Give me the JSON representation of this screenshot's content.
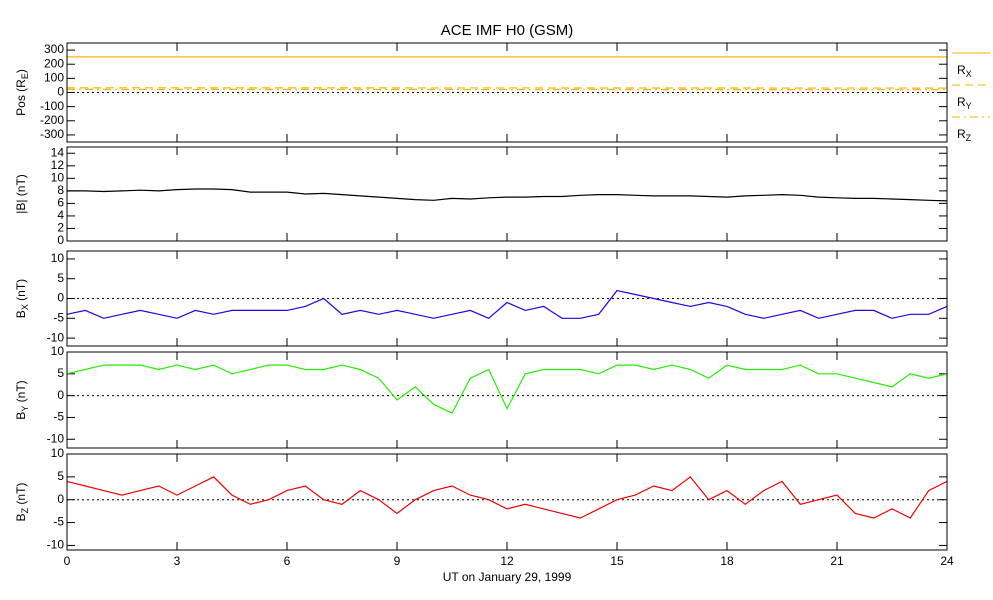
{
  "chart_data": [
    {
      "type": "line",
      "title": "ACE IMF H0 (GSM)",
      "ylabel": [
        "Pos (R",
        "E",
        ")"
      ],
      "x": [
        0,
        24
      ],
      "xlim": [
        0,
        24
      ],
      "xticks": [
        0,
        3,
        6,
        9,
        12,
        15,
        18,
        21,
        24
      ],
      "ylim": [
        -350,
        350
      ],
      "yticks": [
        -300,
        -200,
        -100,
        0,
        100,
        200,
        300
      ],
      "zero_line": true,
      "series": [
        {
          "name": "RX",
          "color": "#ffb000",
          "dash": "solid",
          "values": [
            252,
            252
          ]
        },
        {
          "name": "RY",
          "color": "#ffb000",
          "dash": "dashed",
          "values": [
            33,
            31
          ]
        },
        {
          "name": "RZ",
          "color": "#ffb000",
          "dash": "dashdot",
          "values": [
            22,
            20
          ]
        }
      ]
    },
    {
      "type": "line",
      "ylabel": [
        "|B| (nT)"
      ],
      "x": [
        0,
        0.5,
        1,
        1.5,
        2,
        2.5,
        3,
        3.5,
        4,
        4.5,
        5,
        5.5,
        6,
        6.5,
        7,
        7.5,
        8,
        8.5,
        9,
        9.5,
        10,
        10.5,
        11,
        11.5,
        12,
        12.5,
        13,
        13.5,
        14,
        14.5,
        15,
        15.5,
        16,
        16.5,
        17,
        17.5,
        18,
        18.5,
        19,
        19.5,
        20,
        20.5,
        21,
        21.5,
        22,
        22.5,
        23,
        23.5,
        24
      ],
      "xlim": [
        0,
        24
      ],
      "xticks": [
        0,
        3,
        6,
        9,
        12,
        15,
        18,
        21,
        24
      ],
      "ylim": [
        0,
        15
      ],
      "yticks": [
        0,
        2,
        4,
        6,
        8,
        10,
        12,
        14
      ],
      "series": [
        {
          "name": "|B|",
          "color": "#000000",
          "dash": "solid",
          "values": [
            8,
            8,
            7.9,
            8,
            8.1,
            8,
            8.2,
            8.3,
            8.3,
            8.2,
            7.8,
            7.8,
            7.8,
            7.5,
            7.6,
            7.4,
            7.2,
            7,
            6.8,
            6.6,
            6.5,
            6.8,
            6.7,
            6.9,
            7,
            7,
            7.1,
            7.1,
            7.3,
            7.4,
            7.4,
            7.3,
            7.2,
            7.2,
            7.2,
            7.1,
            7,
            7.2,
            7.3,
            7.4,
            7.3,
            7,
            6.9,
            6.8,
            6.8,
            6.7,
            6.6,
            6.5,
            6.4
          ]
        }
      ]
    },
    {
      "type": "line",
      "ylabel": [
        "B",
        "X",
        " (nT)"
      ],
      "x": [
        0,
        0.5,
        1,
        1.5,
        2,
        2.5,
        3,
        3.5,
        4,
        4.5,
        5,
        5.5,
        6,
        6.5,
        7,
        7.5,
        8,
        8.5,
        9,
        9.5,
        10,
        10.5,
        11,
        11.5,
        12,
        12.5,
        13,
        13.5,
        14,
        14.5,
        15,
        15.5,
        16,
        16.5,
        17,
        17.5,
        18,
        18.5,
        19,
        19.5,
        20,
        20.5,
        21,
        21.5,
        22,
        22.5,
        23,
        23.5,
        24
      ],
      "xlim": [
        0,
        24
      ],
      "xticks": [
        0,
        3,
        6,
        9,
        12,
        15,
        18,
        21,
        24
      ],
      "ylim": [
        -12,
        12
      ],
      "yticks": [
        -10,
        -5,
        0,
        5,
        10
      ],
      "zero_line": true,
      "series": [
        {
          "name": "BX",
          "color": "#2a00e0",
          "dash": "solid",
          "values": [
            -4,
            -3,
            -5,
            -4,
            -3,
            -4,
            -5,
            -3,
            -4,
            -3,
            -3,
            -3,
            -3,
            -2,
            0,
            -4,
            -3,
            -4,
            -3,
            -4,
            -5,
            -4,
            -3,
            -5,
            -1,
            -3,
            -2,
            -5,
            -5,
            -4,
            2,
            1,
            0,
            -1,
            -2,
            -1,
            -2,
            -4,
            -5,
            -4,
            -3,
            -5,
            -4,
            -3,
            -3,
            -5,
            -4,
            -4,
            -2
          ]
        }
      ]
    },
    {
      "type": "line",
      "ylabel": [
        "B",
        "Y",
        " (nT)"
      ],
      "x": [
        0,
        0.5,
        1,
        1.5,
        2,
        2.5,
        3,
        3.5,
        4,
        4.5,
        5,
        5.5,
        6,
        6.5,
        7,
        7.5,
        8,
        8.5,
        9,
        9.5,
        10,
        10.5,
        11,
        11.5,
        12,
        12.5,
        13,
        13.5,
        14,
        14.5,
        15,
        15.5,
        16,
        16.5,
        17,
        17.5,
        18,
        18.5,
        19,
        19.5,
        20,
        20.5,
        21,
        21.5,
        22,
        22.5,
        23,
        23.5,
        24
      ],
      "xlim": [
        0,
        24
      ],
      "xticks": [
        0,
        3,
        6,
        9,
        12,
        15,
        18,
        21,
        24
      ],
      "ylim": [
        -12,
        10
      ],
      "yticks": [
        -10,
        -5,
        0,
        5,
        10
      ],
      "zero_line": true,
      "series": [
        {
          "name": "BY",
          "color": "#22ee00",
          "dash": "solid",
          "values": [
            5,
            6,
            7,
            7,
            7,
            6,
            7,
            6,
            7,
            5,
            6,
            7,
            7,
            6,
            6,
            7,
            6,
            4,
            -1,
            2,
            -2,
            -4,
            4,
            6,
            -3,
            5,
            6,
            6,
            6,
            5,
            7,
            7,
            6,
            7,
            6,
            4,
            7,
            6,
            6,
            6,
            7,
            5,
            5,
            4,
            3,
            2,
            5,
            4,
            5
          ]
        }
      ]
    },
    {
      "type": "line",
      "ylabel": [
        "B",
        "Z",
        " (nT)"
      ],
      "x": [
        0,
        0.5,
        1,
        1.5,
        2,
        2.5,
        3,
        3.5,
        4,
        4.5,
        5,
        5.5,
        6,
        6.5,
        7,
        7.5,
        8,
        8.5,
        9,
        9.5,
        10,
        10.5,
        11,
        11.5,
        12,
        12.5,
        13,
        13.5,
        14,
        14.5,
        15,
        15.5,
        16,
        16.5,
        17,
        17.5,
        18,
        18.5,
        19,
        19.5,
        20,
        20.5,
        21,
        21.5,
        22,
        22.5,
        23,
        23.5,
        24
      ],
      "xlim": [
        0,
        24
      ],
      "xticks": [
        0,
        3,
        6,
        9,
        12,
        15,
        18,
        21,
        24
      ],
      "ylim": [
        -11,
        10
      ],
      "yticks": [
        -10,
        -5,
        0,
        5,
        10
      ],
      "zero_line": true,
      "xlabel": "UT on January 29, 1999",
      "series": [
        {
          "name": "BZ",
          "color": "#ee0000",
          "dash": "solid",
          "values": [
            4,
            3,
            2,
            1,
            2,
            3,
            1,
            3,
            5,
            1,
            -1,
            0,
            2,
            3,
            0,
            -1,
            2,
            0,
            -3,
            0,
            2,
            3,
            1,
            0,
            -2,
            -1,
            -2,
            -3,
            -4,
            -2,
            0,
            1,
            3,
            2,
            5,
            0,
            2,
            -1,
            2,
            4,
            -1,
            0,
            1,
            -3,
            -4,
            -2,
            -4,
            2,
            4
          ]
        }
      ]
    }
  ]
}
